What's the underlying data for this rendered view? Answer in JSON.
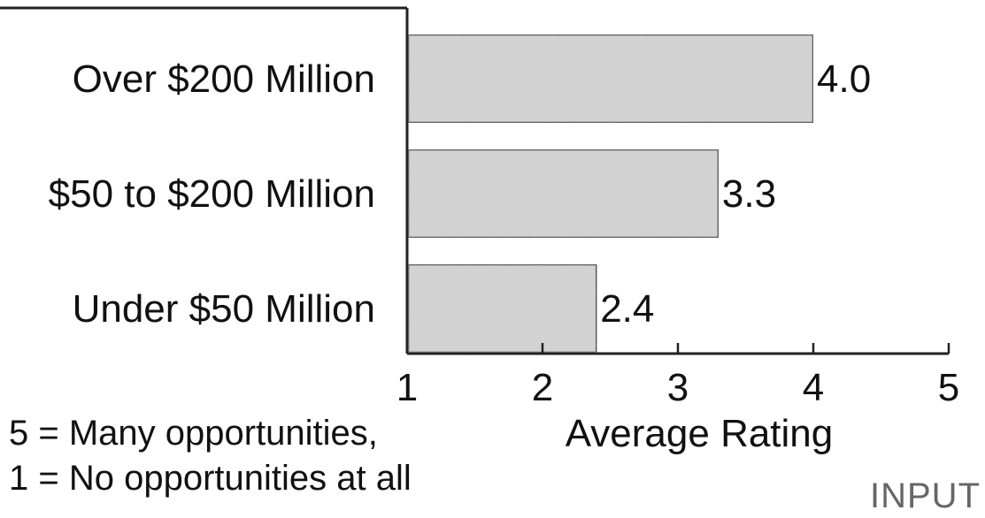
{
  "chart_data": {
    "type": "bar",
    "orientation": "horizontal",
    "categories": [
      "Over $200 Million",
      "$50 to $200 Million",
      "Under $50 Million"
    ],
    "values": [
      4.0,
      3.3,
      2.4
    ],
    "value_labels": [
      "4.0",
      "3.3",
      "2.4"
    ],
    "xlabel": "Average Rating",
    "ylabel": "",
    "xlim": [
      1,
      5
    ],
    "x_ticks": [
      "1",
      "2",
      "3",
      "4",
      "5"
    ],
    "grid": false,
    "legend_placement": "none",
    "bar_color": "#d6d6d6",
    "bar_edge_color": "#333333",
    "notes": [
      "5 = Many opportunities,",
      "1 = No opportunities at all"
    ],
    "corner_label": "INPUT"
  }
}
